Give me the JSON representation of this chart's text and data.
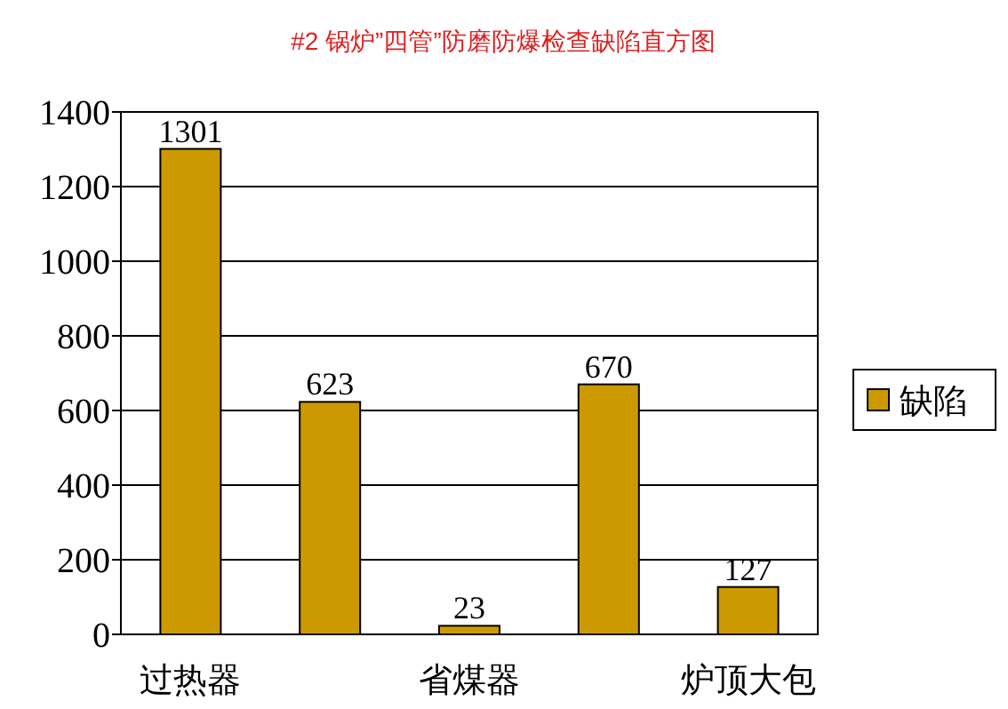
{
  "chart_data": {
    "type": "bar",
    "title": "#2 锅炉”四管”防磨防爆检查缺陷直方图",
    "categories": [
      "过热器",
      null,
      "省煤器",
      null,
      "炉顶大包"
    ],
    "series": [
      {
        "name": "缺陷",
        "color": "#cc9900",
        "values": [
          1301,
          623,
          23,
          670,
          127
        ]
      }
    ],
    "ylim": [
      0,
      1400
    ],
    "yticks": [
      0,
      200,
      400,
      600,
      800,
      1000,
      1200,
      1400
    ],
    "grid": "y",
    "legend": "right",
    "data_labels": true
  }
}
